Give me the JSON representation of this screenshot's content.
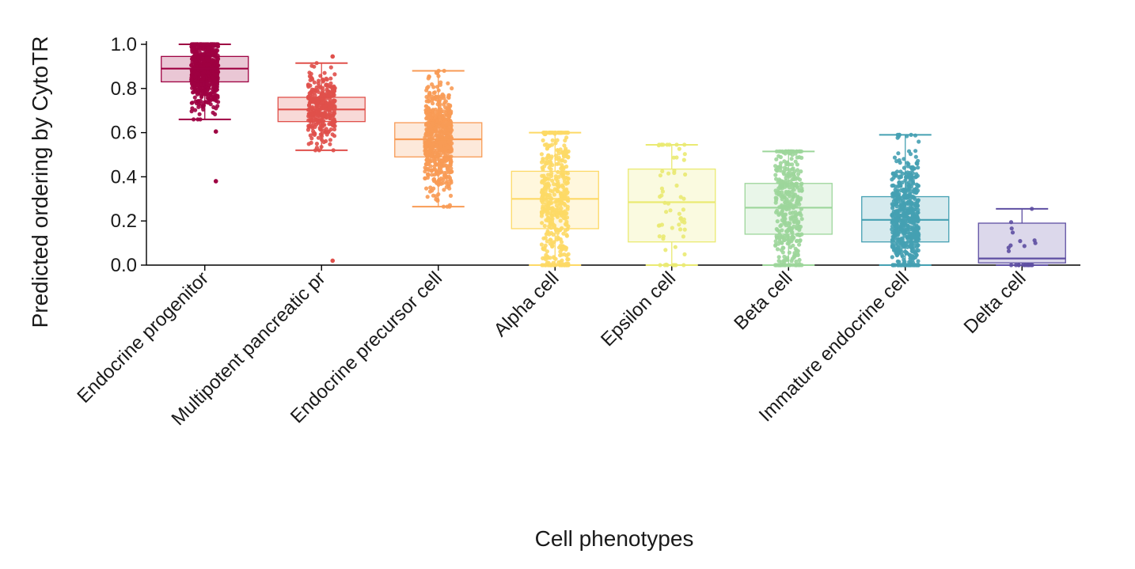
{
  "chart_data": {
    "type": "box",
    "xlabel": "Cell phenotypes",
    "ylabel": "Predicted ordering by CytoTR",
    "ylim": [
      0,
      1
    ],
    "yticks": [
      0.0,
      0.2,
      0.4,
      0.6,
      0.8,
      1.0
    ],
    "ytick_labels": [
      "0.0",
      "0.2",
      "0.4",
      "0.6",
      "0.8",
      "1.0"
    ],
    "grid": false,
    "legend": "none",
    "categories": [
      "Endocrine progenitor",
      "Multipotent pancreatic pr",
      "Endocrine precursor cell",
      "Alpha cell",
      "Epsilon cell",
      "Beta cell",
      "Immature endocrine cell",
      "Delta cell"
    ],
    "boxes": [
      {
        "category": "Endocrine progenitor",
        "whisker_low": 0.66,
        "q1": 0.83,
        "median": 0.89,
        "q3": 0.945,
        "whisker_high": 1.0,
        "outliers": [
          0.605,
          0.38
        ],
        "color": "#9e0142"
      },
      {
        "category": "Multipotent pancreatic pr",
        "whisker_low": 0.52,
        "q1": 0.65,
        "median": 0.705,
        "q3": 0.76,
        "whisker_high": 0.915,
        "outliers": [
          0.945,
          0.02
        ],
        "color": "#e0504b"
      },
      {
        "category": "Endocrine precursor cell",
        "whisker_low": 0.265,
        "q1": 0.49,
        "median": 0.57,
        "q3": 0.645,
        "whisker_high": 0.88,
        "outliers": [],
        "color": "#f89b55"
      },
      {
        "category": "Alpha cell",
        "whisker_low": 0.0,
        "q1": 0.165,
        "median": 0.3,
        "q3": 0.425,
        "whisker_high": 0.6,
        "outliers": [],
        "color": "#fdd966"
      },
      {
        "category": "Epsilon cell",
        "whisker_low": 0.0,
        "q1": 0.105,
        "median": 0.285,
        "q3": 0.435,
        "whisker_high": 0.545,
        "outliers": [],
        "color": "#eaea72"
      },
      {
        "category": "Beta cell",
        "whisker_low": 0.0,
        "q1": 0.14,
        "median": 0.26,
        "q3": 0.37,
        "whisker_high": 0.515,
        "outliers": [],
        "color": "#9dd69b"
      },
      {
        "category": "Immature endocrine cell",
        "whisker_low": 0.0,
        "q1": 0.105,
        "median": 0.205,
        "q3": 0.31,
        "whisker_high": 0.59,
        "outliers": [],
        "color": "#45a0b2"
      },
      {
        "category": "Delta cell",
        "whisker_low": 0.0,
        "q1": 0.01,
        "median": 0.03,
        "q3": 0.19,
        "whisker_high": 0.255,
        "outliers": [],
        "color": "#5e4fa2"
      }
    ]
  }
}
